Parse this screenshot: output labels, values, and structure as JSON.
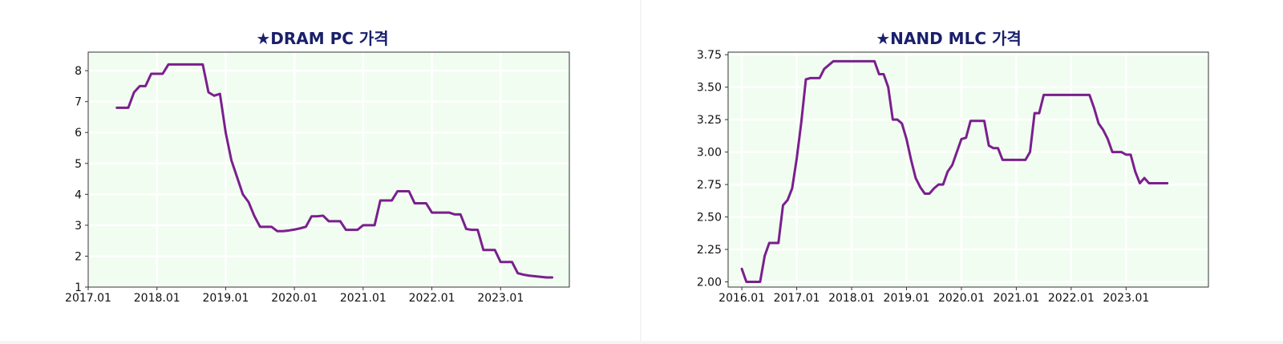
{
  "charts": [
    {
      "title": "★DRAM PC 가격",
      "chart_data": {
        "type": "line",
        "title": "★DRAM PC 가격",
        "xlabel": "",
        "ylabel": "",
        "x_ticks": [
          "2017.01",
          "2018.01",
          "2019.01",
          "2020.01",
          "2021.01",
          "2022.01",
          "2023.01"
        ],
        "y_ticks": [
          "1",
          "2",
          "3",
          "4",
          "5",
          "6",
          "7",
          "8"
        ],
        "xlim": [
          "2017.01",
          "2024.01"
        ],
        "ylim": [
          1,
          8.6
        ],
        "grid": true,
        "background": "#f1fdf0",
        "series": [
          {
            "color": "#7a1f8e",
            "points": [
              [
                "2017.06",
                6.8
              ],
              [
                "2017.07",
                6.8
              ],
              [
                "2017.08",
                6.8
              ],
              [
                "2017.09",
                7.3
              ],
              [
                "2017.10",
                7.5
              ],
              [
                "2017.11",
                7.5
              ],
              [
                "2017.12",
                7.9
              ],
              [
                "2018.01",
                7.9
              ],
              [
                "2018.02",
                7.9
              ],
              [
                "2018.03",
                8.2
              ],
              [
                "2018.04",
                8.2
              ],
              [
                "2018.05",
                8.2
              ],
              [
                "2018.06",
                8.2
              ],
              [
                "2018.07",
                8.2
              ],
              [
                "2018.08",
                8.2
              ],
              [
                "2018.09",
                8.2
              ],
              [
                "2018.10",
                7.3
              ],
              [
                "2018.11",
                7.19
              ],
              [
                "2018.12",
                7.25
              ],
              [
                "2019.01",
                6.0
              ],
              [
                "2019.02",
                5.1
              ],
              [
                "2019.03",
                4.55
              ],
              [
                "2019.04",
                4.0
              ],
              [
                "2019.05",
                3.75
              ],
              [
                "2019.06",
                3.3
              ],
              [
                "2019.07",
                2.95
              ],
              [
                "2019.08",
                2.95
              ],
              [
                "2019.09",
                2.95
              ],
              [
                "2019.10",
                2.81
              ],
              [
                "2019.11",
                2.81
              ],
              [
                "2019.12",
                2.83
              ],
              [
                "2020.01",
                2.86
              ],
              [
                "2020.02",
                2.9
              ],
              [
                "2020.03",
                2.95
              ],
              [
                "2020.04",
                3.29
              ],
              [
                "2020.05",
                3.29
              ],
              [
                "2020.06",
                3.31
              ],
              [
                "2020.07",
                3.13
              ],
              [
                "2020.08",
                3.13
              ],
              [
                "2020.09",
                3.13
              ],
              [
                "2020.10",
                2.85
              ],
              [
                "2020.11",
                2.85
              ],
              [
                "2020.12",
                2.85
              ],
              [
                "2021.01",
                3.0
              ],
              [
                "2021.02",
                3.0
              ],
              [
                "2021.03",
                3.0
              ],
              [
                "2021.04",
                3.8
              ],
              [
                "2021.05",
                3.8
              ],
              [
                "2021.06",
                3.8
              ],
              [
                "2021.07",
                4.1
              ],
              [
                "2021.08",
                4.1
              ],
              [
                "2021.09",
                4.1
              ],
              [
                "2021.10",
                3.71
              ],
              [
                "2021.11",
                3.71
              ],
              [
                "2021.12",
                3.71
              ],
              [
                "2022.01",
                3.41
              ],
              [
                "2022.02",
                3.41
              ],
              [
                "2022.03",
                3.41
              ],
              [
                "2022.04",
                3.41
              ],
              [
                "2022.05",
                3.35
              ],
              [
                "2022.06",
                3.35
              ],
              [
                "2022.07",
                2.88
              ],
              [
                "2022.08",
                2.85
              ],
              [
                "2022.09",
                2.85
              ],
              [
                "2022.10",
                2.2
              ],
              [
                "2022.11",
                2.2
              ],
              [
                "2022.12",
                2.2
              ],
              [
                "2023.01",
                1.81
              ],
              [
                "2023.02",
                1.81
              ],
              [
                "2023.03",
                1.81
              ],
              [
                "2023.04",
                1.45
              ],
              [
                "2023.05",
                1.4
              ],
              [
                "2023.06",
                1.37
              ],
              [
                "2023.07",
                1.35
              ],
              [
                "2023.08",
                1.33
              ],
              [
                "2023.09",
                1.31
              ],
              [
                "2023.10",
                1.31
              ]
            ]
          }
        ]
      }
    },
    {
      "title": "★NAND MLC 가격",
      "chart_data": {
        "type": "line",
        "title": "★NAND MLC 가격",
        "xlabel": "",
        "ylabel": "",
        "x_ticks": [
          "2016.01",
          "2017.01",
          "2018.01",
          "2019.01",
          "2020.01",
          "2021.01",
          "2022.01",
          "2023.01"
        ],
        "y_ticks": [
          "2.00",
          "2.25",
          "2.50",
          "2.75",
          "3.00",
          "3.25",
          "3.50",
          "3.75"
        ],
        "xlim": [
          "2015.10",
          "2024.07"
        ],
        "ylim": [
          1.96,
          3.77
        ],
        "grid": true,
        "background": "#f1fdf0",
        "series": [
          {
            "color": "#7a1f8e",
            "points": [
              [
                "2016.01",
                2.1
              ],
              [
                "2016.02",
                2.0
              ],
              [
                "2016.03",
                2.0
              ],
              [
                "2016.04",
                2.0
              ],
              [
                "2016.05",
                2.0
              ],
              [
                "2016.06",
                2.2
              ],
              [
                "2016.07",
                2.3
              ],
              [
                "2016.08",
                2.3
              ],
              [
                "2016.09",
                2.3
              ],
              [
                "2016.10",
                2.59
              ],
              [
                "2016.11",
                2.63
              ],
              [
                "2016.12",
                2.72
              ],
              [
                "2017.01",
                2.95
              ],
              [
                "2017.02",
                3.23
              ],
              [
                "2017.03",
                3.56
              ],
              [
                "2017.04",
                3.57
              ],
              [
                "2017.05",
                3.57
              ],
              [
                "2017.06",
                3.57
              ],
              [
                "2017.07",
                3.64
              ],
              [
                "2017.08",
                3.67
              ],
              [
                "2017.09",
                3.7
              ],
              [
                "2017.10",
                3.7
              ],
              [
                "2017.11",
                3.7
              ],
              [
                "2017.12",
                3.7
              ],
              [
                "2018.01",
                3.7
              ],
              [
                "2018.02",
                3.7
              ],
              [
                "2018.03",
                3.7
              ],
              [
                "2018.04",
                3.7
              ],
              [
                "2018.05",
                3.7
              ],
              [
                "2018.06",
                3.7
              ],
              [
                "2018.07",
                3.6
              ],
              [
                "2018.08",
                3.6
              ],
              [
                "2018.09",
                3.5
              ],
              [
                "2018.10",
                3.25
              ],
              [
                "2018.11",
                3.25
              ],
              [
                "2018.12",
                3.22
              ],
              [
                "2019.01",
                3.1
              ],
              [
                "2019.02",
                2.94
              ],
              [
                "2019.03",
                2.8
              ],
              [
                "2019.04",
                2.73
              ],
              [
                "2019.05",
                2.68
              ],
              [
                "2019.06",
                2.68
              ],
              [
                "2019.07",
                2.72
              ],
              [
                "2019.08",
                2.75
              ],
              [
                "2019.09",
                2.75
              ],
              [
                "2019.10",
                2.85
              ],
              [
                "2019.11",
                2.9
              ],
              [
                "2019.12",
                3.0
              ],
              [
                "2020.01",
                3.1
              ],
              [
                "2020.02",
                3.11
              ],
              [
                "2020.03",
                3.24
              ],
              [
                "2020.04",
                3.24
              ],
              [
                "2020.05",
                3.24
              ],
              [
                "2020.06",
                3.24
              ],
              [
                "2020.07",
                3.05
              ],
              [
                "2020.08",
                3.03
              ],
              [
                "2020.09",
                3.03
              ],
              [
                "2020.10",
                2.94
              ],
              [
                "2020.11",
                2.94
              ],
              [
                "2020.12",
                2.94
              ],
              [
                "2021.01",
                2.94
              ],
              [
                "2021.02",
                2.94
              ],
              [
                "2021.03",
                2.94
              ],
              [
                "2021.04",
                3.0
              ],
              [
                "2021.05",
                3.3
              ],
              [
                "2021.06",
                3.3
              ],
              [
                "2021.07",
                3.44
              ],
              [
                "2021.08",
                3.44
              ],
              [
                "2021.09",
                3.44
              ],
              [
                "2021.10",
                3.44
              ],
              [
                "2021.11",
                3.44
              ],
              [
                "2021.12",
                3.44
              ],
              [
                "2022.01",
                3.44
              ],
              [
                "2022.02",
                3.44
              ],
              [
                "2022.03",
                3.44
              ],
              [
                "2022.04",
                3.44
              ],
              [
                "2022.05",
                3.44
              ],
              [
                "2022.06",
                3.34
              ],
              [
                "2022.07",
                3.22
              ],
              [
                "2022.08",
                3.17
              ],
              [
                "2022.09",
                3.1
              ],
              [
                "2022.10",
                3.0
              ],
              [
                "2022.11",
                3.0
              ],
              [
                "2022.12",
                3.0
              ],
              [
                "2023.01",
                2.98
              ],
              [
                "2023.02",
                2.98
              ],
              [
                "2023.03",
                2.85
              ],
              [
                "2023.04",
                2.76
              ],
              [
                "2023.05",
                2.8
              ],
              [
                "2023.06",
                2.76
              ],
              [
                "2023.07",
                2.76
              ],
              [
                "2023.08",
                2.76
              ],
              [
                "2023.09",
                2.76
              ],
              [
                "2023.10",
                2.76
              ]
            ]
          }
        ]
      }
    }
  ]
}
